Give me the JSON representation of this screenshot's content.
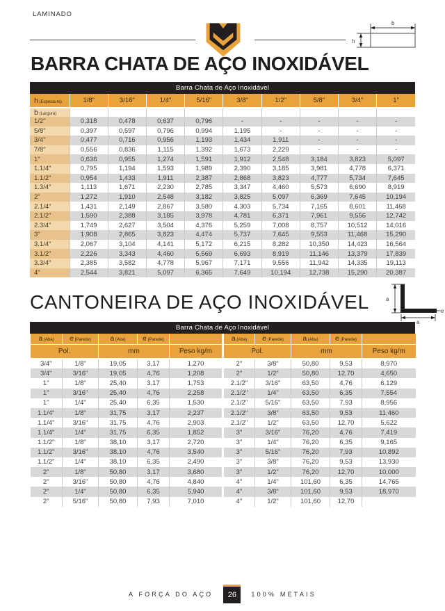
{
  "header": {
    "eyebrow": "LAMINADO"
  },
  "diagrams": {
    "flat_bar": {
      "width_label": "b",
      "height_label": "h"
    },
    "angle": {
      "leg_label": "a",
      "thickness_label": "e"
    }
  },
  "section1": {
    "title": "BARRA CHATA DE AÇO INOXIDÁVEL",
    "table_title": "Barra Chata de Aço Inoxidável",
    "corner_main": "h",
    "corner_sub": "(Espessura)",
    "subcorner_main": "b",
    "subcorner_sub": "(Largura)",
    "columns": [
      "1/8\"",
      "3/16\"",
      "1/4\"",
      "5/16\"",
      "3/8\"",
      "1/2\"",
      "5/8\"",
      "3/4\"",
      "1\""
    ],
    "rows": [
      {
        "label": "1/2\"",
        "values": [
          "0,318",
          "0,478",
          "0,637",
          "0,796",
          "-",
          "-",
          "-",
          "-",
          "-"
        ]
      },
      {
        "label": "5/8\"",
        "values": [
          "0,397",
          "0,597",
          "0,796",
          "0,994",
          "1,195",
          "-",
          "-",
          "-",
          "-"
        ]
      },
      {
        "label": "3/4\"",
        "values": [
          "0,477",
          "0,716",
          "0,956",
          "1,193",
          "1,434",
          "1,911",
          "-",
          "-",
          "-"
        ]
      },
      {
        "label": "7/8\"",
        "values": [
          "0,556",
          "0,836",
          "1,115",
          "1,392",
          "1,673",
          "2,229",
          "-",
          "-",
          "-"
        ]
      },
      {
        "label": "1\"",
        "values": [
          "0,636",
          "0,955",
          "1,274",
          "1,591",
          "1,912",
          "2,548",
          "3,184",
          "3,823",
          "5,097"
        ]
      },
      {
        "label": "1.1/4\"",
        "values": [
          "0,795",
          "1,194",
          "1,593",
          "1,989",
          "2,390",
          "3,185",
          "3,981",
          "4,778",
          "6,371"
        ]
      },
      {
        "label": "1.1/2\"",
        "values": [
          "0,954",
          "1,433",
          "1,911",
          "2,387",
          "2,868",
          "3,823",
          "4,777",
          "5,734",
          "7,645"
        ]
      },
      {
        "label": "1.3/4\"",
        "values": [
          "1,113",
          "1,671",
          "2,230",
          "2,785",
          "3,347",
          "4,460",
          "5,573",
          "6,690",
          "8,919"
        ]
      },
      {
        "label": "2\"",
        "values": [
          "1,272",
          "1,910",
          "2,548",
          "3,182",
          "3,825",
          "5,097",
          "6,369",
          "7,645",
          "10,194"
        ]
      },
      {
        "label": "2.1/4\"",
        "values": [
          "1,431",
          "2,149",
          "2,867",
          "3,580",
          "4,303",
          "5,734",
          "7,165",
          "8,601",
          "11,468"
        ]
      },
      {
        "label": "2.1/2\"",
        "values": [
          "1,590",
          "2,388",
          "3,185",
          "3,978",
          "4,781",
          "6,371",
          "7,961",
          "9,556",
          "12,742"
        ]
      },
      {
        "label": "2.3/4\"",
        "values": [
          "1,749",
          "2,627",
          "3,504",
          "4,376",
          "5,259",
          "7,008",
          "8,757",
          "10,512",
          "14,016"
        ]
      },
      {
        "label": "3\"",
        "values": [
          "1,908",
          "2,865",
          "3,823",
          "4,474",
          "5,737",
          "7,645",
          "9,553",
          "11,468",
          "15,290"
        ]
      },
      {
        "label": "3.1/4\"",
        "values": [
          "2,067",
          "3,104",
          "4,141",
          "5,172",
          "6,215",
          "8,282",
          "10,350",
          "14,423",
          "16,564"
        ]
      },
      {
        "label": "3.1/2\"",
        "values": [
          "2,226",
          "3,343",
          "4,460",
          "5,569",
          "6,693",
          "8,919",
          "11,146",
          "13,379",
          "17,839"
        ]
      },
      {
        "label": "3.3/4\"",
        "values": [
          "2,385",
          "3,582",
          "4,778",
          "5,967",
          "7,171",
          "9,556",
          "11,942",
          "14,335",
          "19,113"
        ]
      },
      {
        "label": "4\"",
        "values": [
          "2,544",
          "3,821",
          "5,097",
          "6,365",
          "7,649",
          "10,194",
          "12,738",
          "15,290",
          "20,387"
        ]
      }
    ]
  },
  "section2": {
    "title": "CANTONEIRA DE AÇO INOXIDÁVEL",
    "table_title": "Barra Chata de Aço Inoxidável",
    "header": {
      "a_main": "a",
      "a_sub": "(Aba)",
      "e_main": "e",
      "e_sub": "(Parede)",
      "pol": "Pol.",
      "mm": "mm",
      "peso": "Peso kg/m"
    },
    "rows": [
      [
        "3/4\"",
        "1/8\"",
        "19,05",
        "3,17",
        "1,270",
        "2\"",
        "3/8\"",
        "50,80",
        "9,53",
        "8,970"
      ],
      [
        "3/4\"",
        "3/16\"",
        "19,05",
        "4,76",
        "1,208",
        "2\"",
        "1/2\"",
        "50,80",
        "12,70",
        "4,650"
      ],
      [
        "1\"",
        "1/8\"",
        "25,40",
        "3,17",
        "1,753",
        "2.1/2\"",
        "3/16\"",
        "63,50",
        "4,76",
        "6,129"
      ],
      [
        "1\"",
        "3/16\"",
        "25,40",
        "4,76",
        "2,258",
        "2.1/2\"",
        "1/4\"",
        "63,50",
        "6,35",
        "7,554"
      ],
      [
        "1\"",
        "1/4\"",
        "25,40",
        "6,35",
        "1,530",
        "2.1/2\"",
        "5/16\"",
        "63,50",
        "7,93",
        "8,956"
      ],
      [
        "1.1/4\"",
        "1/8\"",
        "31,75",
        "3,17",
        "2,237",
        "2.1/2\"",
        "3/8\"",
        "63,50",
        "9,53",
        "11,460"
      ],
      [
        "1.1/4\"",
        "3/16\"",
        "31,75",
        "4,76",
        "2,903",
        "2.1/2\"",
        "1/2\"",
        "63,50",
        "12,70",
        "5,622"
      ],
      [
        "1.1/4\"",
        "1/4\"",
        "31,75",
        "6,35",
        "1,852",
        "3\"",
        "3/16\"",
        "76,20",
        "4,76",
        "7,419"
      ],
      [
        "1.1/2\"",
        "1/8\"",
        "38,10",
        "3,17",
        "2,720",
        "3\"",
        "1/4\"",
        "76,20",
        "6,35",
        "9,165"
      ],
      [
        "1.1/2\"",
        "3/16\"",
        "38,10",
        "4,76",
        "3,540",
        "3\"",
        "5/16\"",
        "76,20",
        "7,93",
        "10,892"
      ],
      [
        "1.1/2\"",
        "1/4\"",
        "38,10",
        "6,35",
        "2,490",
        "3\"",
        "3/8\"",
        "76,20",
        "9,53",
        "13,930"
      ],
      [
        "2\"",
        "1/8\"",
        "50,80",
        "3,17",
        "3,680",
        "3\"",
        "1/2\"",
        "76,20",
        "12,70",
        "10,000"
      ],
      [
        "2\"",
        "3/16\"",
        "50,80",
        "4,76",
        "4,840",
        "4\"",
        "1/4\"",
        "101,60",
        "6,35",
        "14,765"
      ],
      [
        "2\"",
        "1/4\"",
        "50,80",
        "6,35",
        "5,940",
        "4\"",
        "3/8\"",
        "101,60",
        "9,53",
        "18,970"
      ],
      [
        "2\"",
        "5/16\"",
        "50,80",
        "7,93",
        "7,010",
        "4\"",
        "1/2\"",
        "101,60",
        "12,70",
        ""
      ]
    ]
  },
  "footer": {
    "left": "A FORÇA DO AÇO",
    "page_number": "26",
    "right": "100% METAIS"
  },
  "colors": {
    "gold": "#E8A33C",
    "dark": "#231F20",
    "row_gray": "#D8D8D8",
    "tan_light": "#F3D8AB",
    "tan_dark": "#E9C28B"
  }
}
